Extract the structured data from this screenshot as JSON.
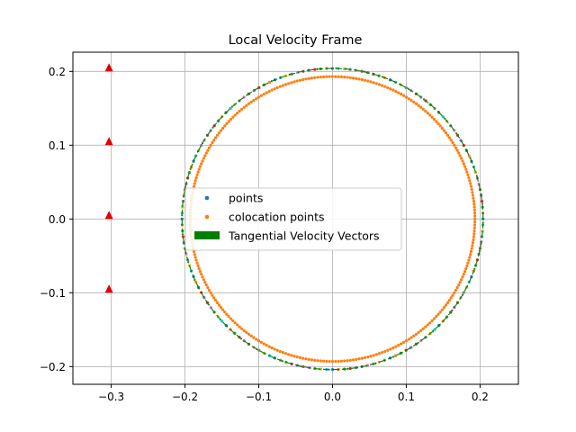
{
  "chart_data": {
    "type": "scatter",
    "title": "Local Velocity Frame",
    "xlabel": "",
    "ylabel": "",
    "xlim": [
      -0.352,
      0.252
    ],
    "ylim": [
      -0.224,
      0.226
    ],
    "xticks": [
      -0.3,
      -0.2,
      -0.1,
      0.0,
      0.1,
      0.2
    ],
    "xtick_labels": [
      "−0.3",
      "−0.2",
      "−0.1",
      "0.0",
      "0.1",
      "0.2"
    ],
    "yticks": [
      -0.2,
      -0.1,
      0.0,
      0.1,
      0.2
    ],
    "ytick_labels": [
      "−0.2",
      "−0.1",
      "0.0",
      "0.1",
      "0.2"
    ],
    "grid": true,
    "legend_position": "center",
    "series": [
      {
        "name": "points",
        "kind": "circle",
        "radius": 0.204,
        "count": 160,
        "color": "#1f77b4"
      },
      {
        "name": "colocation points",
        "kind": "circle",
        "radius": 0.193,
        "count": 300,
        "color": "#ff7f0e"
      },
      {
        "name": "Tangential Velocity Vectors",
        "kind": "tangent-arrows",
        "radius": 0.204,
        "count": 100,
        "color": "#008000"
      }
    ],
    "markers": {
      "color": "#e00000",
      "shape": "triangle",
      "x": [
        -0.303,
        -0.303,
        -0.303,
        -0.303
      ],
      "y": [
        0.205,
        0.105,
        0.005,
        -0.095
      ]
    }
  }
}
